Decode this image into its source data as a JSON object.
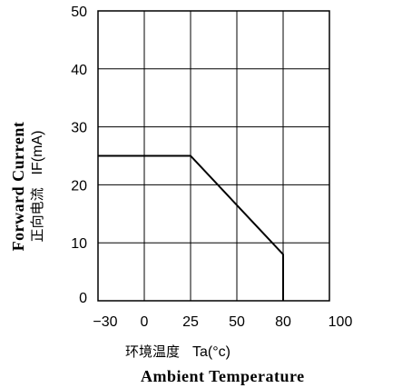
{
  "chart_data": {
    "type": "line",
    "xlabel_cn": "环境温度",
    "xlabel_unit": "Ta(°c)",
    "xlabel_en": "Ambient Temperature",
    "ylabel_en": "Forward Current",
    "ylabel_cn": "正向电流",
    "ylabel_unit": "IF(mA)",
    "x_ticks": [
      -30,
      0,
      25,
      50,
      80,
      100
    ],
    "y_ticks": [
      0,
      10,
      20,
      30,
      40,
      50
    ],
    "xlim": [
      -30,
      100
    ],
    "ylim": [
      0,
      50
    ],
    "grid": true,
    "series": [
      {
        "x": [
          -30,
          25,
          80,
          80
        ],
        "y": [
          25,
          25,
          8,
          0
        ]
      }
    ],
    "colors": {
      "line": "#000000",
      "grid": "#000000"
    }
  }
}
